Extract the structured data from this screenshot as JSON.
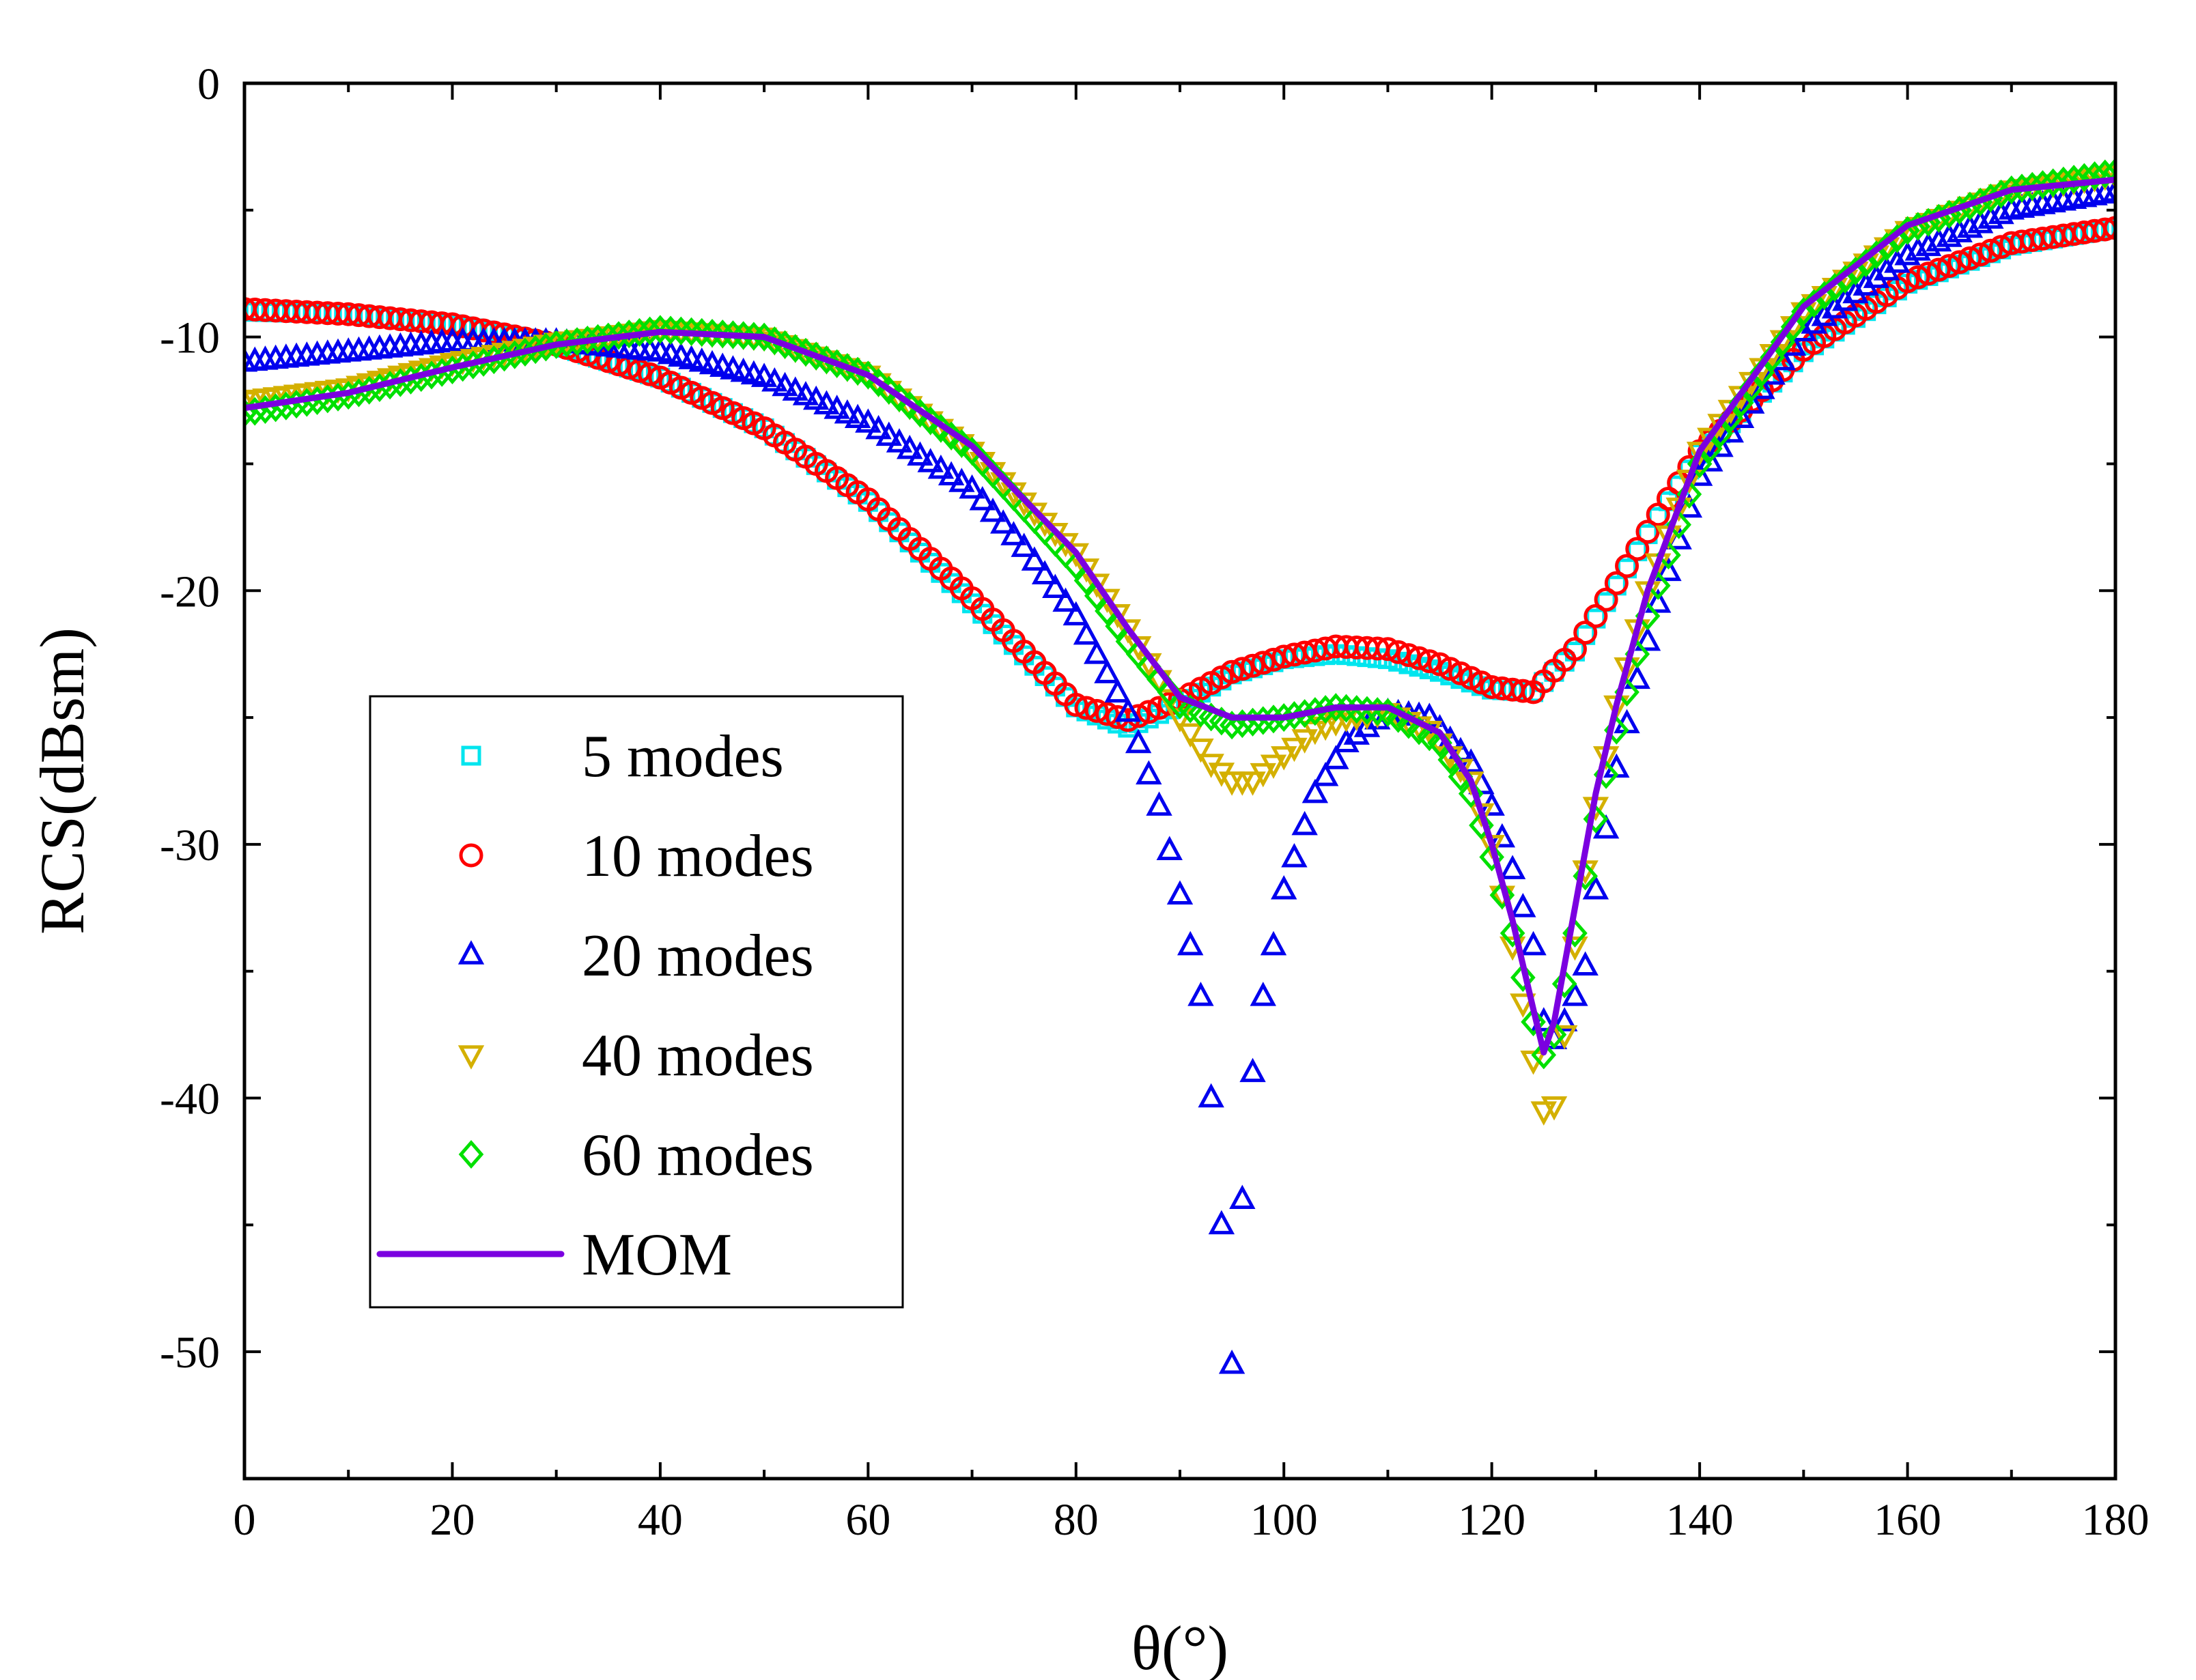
{
  "chart_data": {
    "type": "scatter",
    "xlabel": "θ(°)",
    "ylabel": "RCS(dBsm)",
    "xlim": [
      0,
      180
    ],
    "ylim": [
      -55,
      0
    ],
    "x_ticks": [
      0,
      20,
      40,
      60,
      80,
      100,
      120,
      140,
      160,
      180
    ],
    "y_ticks": [
      0,
      -10,
      -20,
      -30,
      -40,
      -50
    ],
    "grid": false,
    "legend_position": "lower-left",
    "series": [
      {
        "name": "5 modes",
        "marker": "square",
        "color": "#00E5EE",
        "x": [
          0,
          10,
          20,
          30,
          40,
          50,
          60,
          70,
          80,
          85,
          90,
          95,
          100,
          105,
          110,
          115,
          120,
          124,
          128,
          132,
          136,
          140,
          150,
          160,
          170,
          180
        ],
        "y": [
          -9.0,
          -9.1,
          -9.5,
          -10.3,
          -11.6,
          -13.6,
          -16.5,
          -20.5,
          -24.6,
          -25.4,
          -24.5,
          -23.3,
          -22.7,
          -22.5,
          -22.7,
          -23.2,
          -23.9,
          -24.0,
          -22.4,
          -19.8,
          -17.1,
          -14.6,
          -10.6,
          -7.9,
          -6.4,
          -5.7
        ]
      },
      {
        "name": "10 modes",
        "marker": "circle",
        "color": "#FF0000",
        "x": [
          0,
          10,
          20,
          30,
          40,
          50,
          60,
          70,
          80,
          85,
          90,
          95,
          100,
          105,
          110,
          115,
          120,
          124,
          128,
          132,
          136,
          140,
          150,
          160,
          170,
          180
        ],
        "y": [
          -8.9,
          -9.1,
          -9.5,
          -10.3,
          -11.6,
          -13.6,
          -16.4,
          -20.3,
          -24.5,
          -25.1,
          -24.3,
          -23.2,
          -22.6,
          -22.2,
          -22.3,
          -22.9,
          -23.8,
          -24.0,
          -22.3,
          -19.7,
          -17.0,
          -14.5,
          -10.5,
          -7.8,
          -6.3,
          -5.7
        ]
      },
      {
        "name": "20 modes",
        "marker": "triangle-up",
        "color": "#0000EE",
        "x": [
          0,
          10,
          20,
          30,
          40,
          50,
          60,
          70,
          75,
          80,
          85,
          88,
          90,
          92,
          93,
          94,
          95,
          96,
          97,
          98,
          99,
          100,
          103,
          106,
          110,
          114,
          118,
          120,
          122,
          124,
          125,
          126,
          127,
          128,
          129,
          130,
          132,
          134,
          136,
          140,
          150,
          160,
          170,
          180
        ],
        "y": [
          -11.0,
          -10.6,
          -10.2,
          -10.2,
          -10.6,
          -11.6,
          -13.4,
          -16.0,
          -18.3,
          -21.0,
          -24.8,
          -28.5,
          -32.0,
          -36.0,
          -40.0,
          -45.0,
          -50.5,
          -44.0,
          -39.0,
          -36.0,
          -34.0,
          -31.8,
          -28.0,
          -26.0,
          -24.8,
          -25.0,
          -26.8,
          -28.5,
          -31.0,
          -34.0,
          -37.0,
          -37.7,
          -37.0,
          -36.0,
          -34.8,
          -31.8,
          -27.0,
          -23.5,
          -20.5,
          -15.5,
          -9.8,
          -6.8,
          -5.0,
          -4.3
        ]
      },
      {
        "name": "40 modes",
        "marker": "triangle-down",
        "color": "#D4B000",
        "x": [
          0,
          10,
          20,
          30,
          40,
          50,
          60,
          70,
          80,
          85,
          88,
          90,
          93,
          95,
          97,
          100,
          103,
          106,
          110,
          114,
          118,
          120,
          122,
          124,
          125,
          126,
          127,
          128,
          129,
          130,
          132,
          135,
          140,
          150,
          160,
          170,
          180
        ],
        "y": [
          -12.5,
          -12.0,
          -11.0,
          -10.2,
          -9.7,
          -10.0,
          -11.5,
          -14.5,
          -18.5,
          -21.5,
          -23.5,
          -25.0,
          -26.8,
          -27.5,
          -27.5,
          -26.5,
          -25.5,
          -25.0,
          -24.8,
          -25.5,
          -27.5,
          -30.0,
          -34.0,
          -38.5,
          -40.5,
          -40.3,
          -37.5,
          -34.0,
          -31.0,
          -28.5,
          -24.5,
          -20.0,
          -14.5,
          -9.0,
          -5.8,
          -4.2,
          -3.6
        ]
      },
      {
        "name": "60 modes",
        "marker": "diamond",
        "color": "#00E000",
        "x": [
          0,
          10,
          20,
          30,
          40,
          50,
          60,
          70,
          80,
          85,
          90,
          95,
          100,
          105,
          110,
          115,
          118,
          120,
          122,
          124,
          125,
          126,
          128,
          130,
          132,
          135,
          140,
          150,
          160,
          170,
          180
        ],
        "y": [
          -13.0,
          -12.3,
          -11.3,
          -10.3,
          -9.7,
          -10.0,
          -11.5,
          -14.5,
          -19.0,
          -22.0,
          -24.5,
          -25.3,
          -25.0,
          -24.6,
          -24.8,
          -26.0,
          -28.0,
          -30.5,
          -33.5,
          -37.0,
          -38.3,
          -37.5,
          -33.5,
          -29.0,
          -25.5,
          -21.0,
          -15.0,
          -9.0,
          -5.8,
          -4.2,
          -3.5
        ]
      },
      {
        "name": "MOM",
        "marker": "line",
        "color": "#7B00E0",
        "x": [
          0,
          10,
          20,
          30,
          40,
          50,
          60,
          70,
          80,
          85,
          90,
          95,
          100,
          105,
          110,
          115,
          118,
          120,
          122,
          124,
          125,
          126,
          128,
          130,
          132,
          135,
          140,
          150,
          160,
          170,
          180
        ],
        "y": [
          -12.8,
          -12.2,
          -11.2,
          -10.3,
          -9.8,
          -10.0,
          -11.5,
          -14.3,
          -18.5,
          -21.5,
          -24.2,
          -25.0,
          -25.0,
          -24.6,
          -24.6,
          -25.6,
          -27.5,
          -30.0,
          -33.0,
          -36.5,
          -38.2,
          -37.0,
          -32.5,
          -28.0,
          -24.5,
          -20.0,
          -14.5,
          -8.8,
          -5.6,
          -4.2,
          -3.8
        ]
      }
    ]
  }
}
